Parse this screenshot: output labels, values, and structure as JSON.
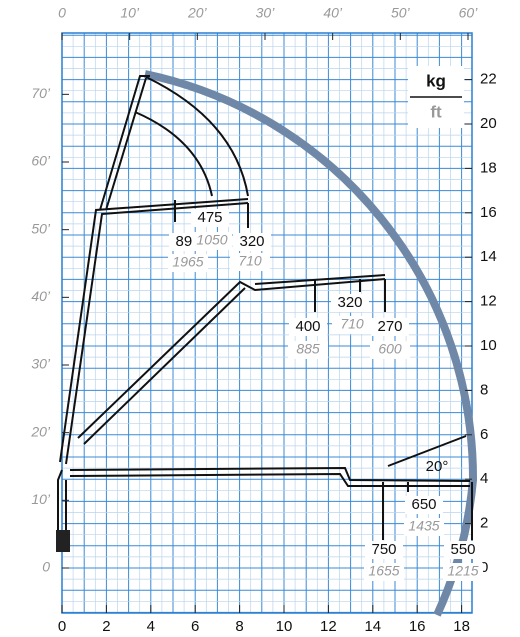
{
  "units": {
    "load": "kg",
    "length": "ft"
  },
  "axes": {
    "x_m": [
      0,
      2,
      4,
      6,
      8,
      10,
      12,
      14,
      16,
      18
    ],
    "y_m": [
      22,
      20,
      18,
      16,
      14,
      12,
      10,
      8,
      6,
      4,
      2,
      0
    ],
    "x_ft": [
      "0",
      "10’",
      "20’",
      "30’",
      "40’",
      "50’",
      "60’"
    ],
    "y_ft": [
      "70’",
      "60’",
      "50’",
      "40’",
      "30’",
      "20’",
      "10’",
      "0"
    ]
  },
  "loads": [
    {
      "kg": 890,
      "lb": 1965
    },
    {
      "kg": 475,
      "lb": 1050
    },
    {
      "kg": 320,
      "lb": 710
    },
    {
      "kg": 400,
      "lb": 885
    },
    {
      "kg": 320,
      "lb": 710
    },
    {
      "kg": 270,
      "lb": 600
    },
    {
      "kg": 650,
      "lb": 1435
    },
    {
      "kg": 750,
      "lb": 1655
    },
    {
      "kg": 550,
      "lb": 1215
    }
  ],
  "jib_angle": "20°"
}
